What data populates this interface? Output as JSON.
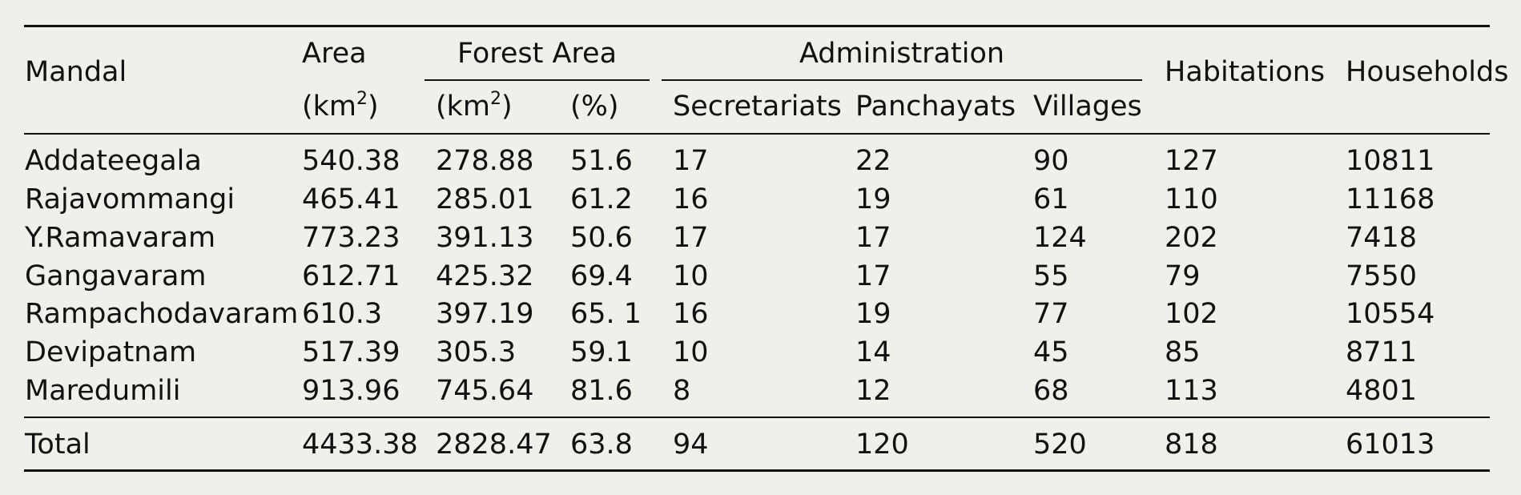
{
  "header": {
    "mandal": "Mandal",
    "area": "Area",
    "area_unit_pre": "(km",
    "area_unit_sup": "2",
    "area_unit_post": ")",
    "forest_area": "Forest Area",
    "forest_km_pre": "(km",
    "forest_km_sup": "2",
    "forest_km_post": ")",
    "forest_pct": "(%)",
    "administration": "Administration",
    "secretariats": "Secretariats",
    "panchayats": "Panchayats",
    "villages": "Villages",
    "habitations": "Habitations",
    "households": "Households"
  },
  "rows": [
    {
      "mandal": "Addateegala",
      "area": "540.38",
      "forest_km2": "278.88",
      "forest_pct": "51.6",
      "secretariats": "17",
      "panchayats": "22",
      "villages": "90",
      "habitations": "127",
      "households": "10811"
    },
    {
      "mandal": "Rajavommangi",
      "area": "465.41",
      "forest_km2": "285.01",
      "forest_pct": "61.2",
      "secretariats": "16",
      "panchayats": "19",
      "villages": "61",
      "habitations": "110",
      "households": "11168"
    },
    {
      "mandal": "Y.Ramavaram",
      "area": "773.23",
      "forest_km2": "391.13",
      "forest_pct": "50.6",
      "secretariats": "17",
      "panchayats": "17",
      "villages": "124",
      "habitations": "202",
      "households": "7418"
    },
    {
      "mandal": "Gangavaram",
      "area": "612.71",
      "forest_km2": "425.32",
      "forest_pct": "69.4",
      "secretariats": "10",
      "panchayats": "17",
      "villages": "55",
      "habitations": "79",
      "households": "7550"
    },
    {
      "mandal": "Rampachodavaram",
      "area": "610.3",
      "forest_km2": "397.19",
      "forest_pct": "65. 1",
      "secretariats": "16",
      "panchayats": "19",
      "villages": "77",
      "habitations": "102",
      "households": "10554"
    },
    {
      "mandal": "Devipatnam",
      "area": "517.39",
      "forest_km2": "305.3",
      "forest_pct": "59.1",
      "secretariats": "10",
      "panchayats": "14",
      "villages": "45",
      "habitations": "85",
      "households": "8711"
    },
    {
      "mandal": "Maredumili",
      "area": "913.96",
      "forest_km2": "745.64",
      "forest_pct": "81.6",
      "secretariats": "8",
      "panchayats": "12",
      "villages": "68",
      "habitations": "113",
      "households": "4801"
    }
  ],
  "total": {
    "mandal": "Total",
    "area": "4433.38",
    "forest_km2": "2828.47",
    "forest_pct": "63.8",
    "secretariats": "94",
    "panchayats": "120",
    "villages": "520",
    "habitations": "818",
    "households": "61013"
  }
}
